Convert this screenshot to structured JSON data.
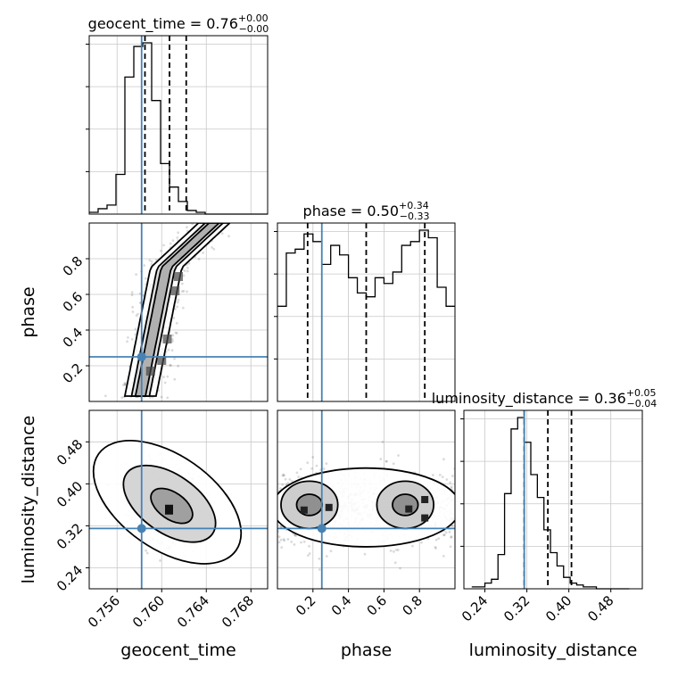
{
  "chart_data": {
    "type": "corner",
    "variables": [
      {
        "name": "geocent_time",
        "xlabel": "geocent_time",
        "title": {
          "main": "geocent_time = 0.76",
          "sup": "+0.00",
          "sub": "−0.00"
        },
        "xlim": [
          0.7535,
          0.7695
        ],
        "ticks": [
          0.756,
          0.76,
          0.764,
          0.768
        ],
        "tick_labels": [
          "0.756",
          "0.760",
          "0.764",
          "0.768"
        ],
        "quantiles": [
          0.7585,
          0.7607,
          0.7622
        ],
        "truth": 0.7582,
        "hist": {
          "start": 0.7535,
          "bin_width": 0.0008,
          "counts": [
            1,
            3,
            5,
            22,
            76,
            93,
            95,
            63,
            28,
            15,
            7,
            2,
            1,
            0,
            0,
            0,
            0,
            0,
            0,
            0
          ]
        }
      },
      {
        "name": "phase",
        "xlabel": "phase",
        "ylabel": "phase",
        "title": {
          "main": "phase = 0.50",
          "sup": "+0.34",
          "sub": "−0.33"
        },
        "xlim": [
          0.0,
          1.0
        ],
        "ticks": [
          0.2,
          0.4,
          0.6,
          0.8
        ],
        "tick_labels": [
          "0.2",
          "0.4",
          "0.6",
          "0.8"
        ],
        "quantiles": [
          0.17,
          0.5,
          0.83
        ],
        "truth": 0.25,
        "hist": {
          "start": 0.0,
          "bin_width": 0.05,
          "counts": [
            50,
            78,
            80,
            88,
            84,
            72,
            82,
            77,
            65,
            57,
            55,
            65,
            62,
            68,
            82,
            84,
            90,
            86,
            60,
            50
          ]
        }
      },
      {
        "name": "luminosity_distance",
        "xlabel": "luminosity_distance",
        "ylabel": "luminosity_distance",
        "title": {
          "main": "luminosity_distance = 0.36",
          "sup": "+0.05",
          "sub": "−0.04"
        },
        "xlim": [
          0.2,
          0.54
        ],
        "ticks": [
          0.24,
          0.32,
          0.4,
          0.48
        ],
        "tick_labels": [
          "0.24",
          "0.32",
          "0.40",
          "0.48"
        ],
        "quantiles": [
          0.315,
          0.36,
          0.405
        ],
        "truth": 0.315,
        "hist": {
          "start": 0.215,
          "bin_width": 0.0125,
          "counts": [
            1,
            1,
            3,
            5,
            18,
            50,
            84,
            90,
            77,
            60,
            48,
            31,
            19,
            12,
            6,
            3,
            2,
            1,
            1,
            0,
            0,
            0,
            0,
            0
          ]
        }
      }
    ],
    "contour_levels": [
      0.39,
      0.86,
      0.99
    ],
    "truth_color": "#4682b4",
    "grid": true
  }
}
